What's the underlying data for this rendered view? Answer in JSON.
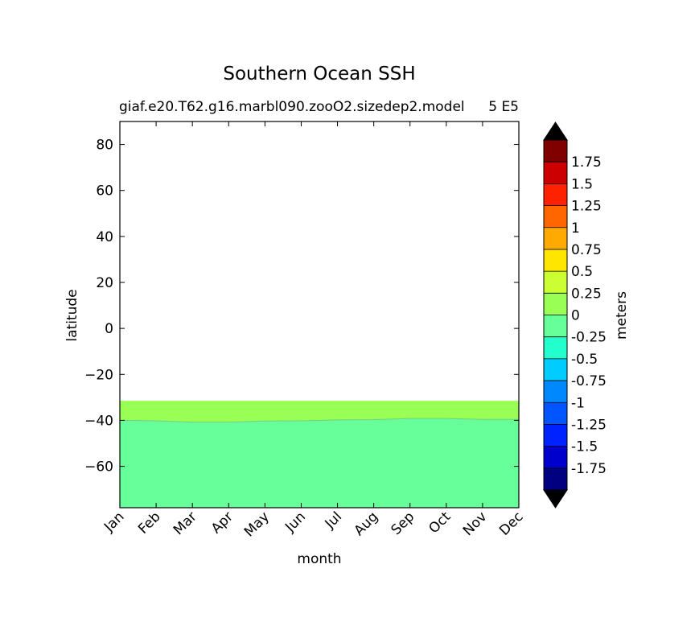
{
  "chart_data": {
    "type": "heatmap",
    "title": "Southern Ocean SSH",
    "subtitle_left": "giaf.e20.T62.g16.marbl090.zooO2.sizedep2.model",
    "subtitle_right": "5 E5",
    "xlabel": "month",
    "ylabel": "latitude",
    "x_ticks": [
      "Jan",
      "Feb",
      "Mar",
      "Apr",
      "May",
      "Jun",
      "Jul",
      "Aug",
      "Sep",
      "Oct",
      "Nov",
      "Dec"
    ],
    "y_ticks": [
      "80",
      "60",
      "40",
      "20",
      "0",
      "−20",
      "−40",
      "−60"
    ],
    "y_tick_values": [
      80,
      60,
      40,
      20,
      0,
      -20,
      -40,
      -60
    ],
    "ylim": [
      -78,
      90
    ],
    "data_top_latitude": -31.5,
    "contour_boundary": {
      "level": 0,
      "latitudes": [
        -40.0,
        -40.2,
        -40.8,
        -40.8,
        -40.3,
        -40.2,
        -39.8,
        -39.7,
        -39.2,
        -39.2,
        -39.6,
        -39.6
      ]
    },
    "fill_above_boundary": "#99ff55",
    "fill_below_boundary": "#66ff99",
    "colorbar": {
      "label": "meters",
      "tick_labels": [
        "1.75",
        "1.5",
        "1.25",
        "1",
        "0.75",
        "0.5",
        "0.25",
        "0",
        "-0.25",
        "-0.5",
        "-0.75",
        "-1",
        "-1.25",
        "-1.5",
        "-1.75"
      ],
      "tick_values": [
        1.75,
        1.5,
        1.25,
        1,
        0.75,
        0.5,
        0.25,
        0,
        -0.25,
        -0.5,
        -0.75,
        -1,
        -1.25,
        -1.5,
        -1.75
      ],
      "bins_top_to_bottom": [
        "#800000",
        "#cc0000",
        "#ff2200",
        "#ff6600",
        "#ffaa00",
        "#ffe600",
        "#ccff33",
        "#99ff55",
        "#66ff99",
        "#22ffcc",
        "#00ccff",
        "#0088ff",
        "#0055ff",
        "#0022ff",
        "#0000cc",
        "#000080"
      ],
      "extend_colors": {
        "max": "#000000",
        "min": "#000000"
      }
    }
  }
}
